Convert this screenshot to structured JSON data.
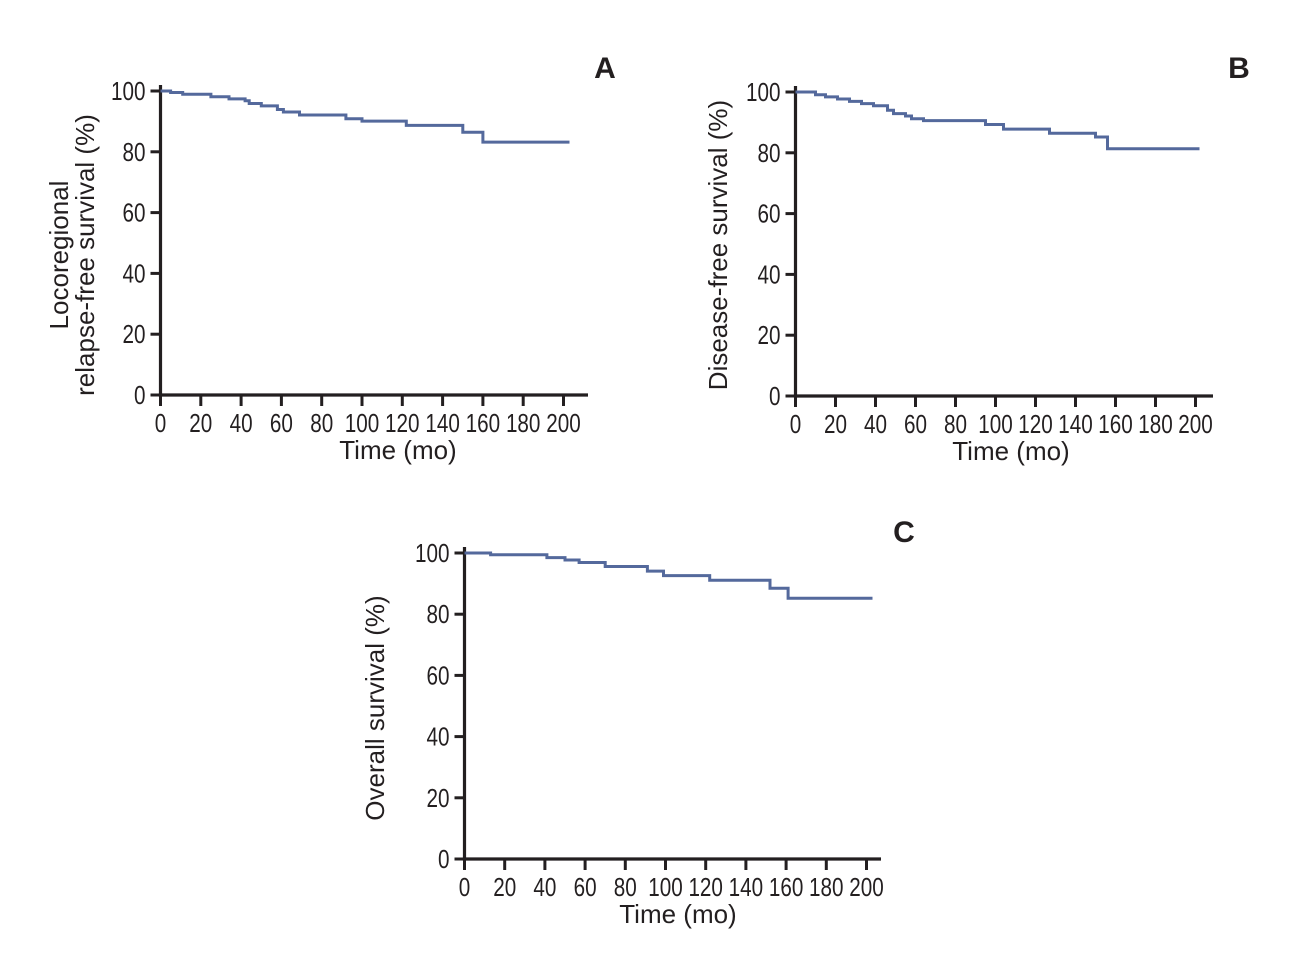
{
  "figure": {
    "background": "#ffffff",
    "description_visible_text_only": true
  },
  "chart_data": [
    {
      "type": "line",
      "subtype": "kaplan-meier-step",
      "panel": "A",
      "panel_label": "A",
      "xlabel": "Time (mo)",
      "ylabel": "Locoregional relapse-free survival (%)",
      "ylabel_lines": [
        "Locoregional",
        "relapse-free survival (%)"
      ],
      "xlim": [
        0,
        210
      ],
      "ylim": [
        0,
        100
      ],
      "x_ticks": [
        0,
        20,
        40,
        60,
        80,
        100,
        120,
        140,
        160,
        180,
        200
      ],
      "y_ticks": [
        0,
        20,
        40,
        60,
        80,
        100
      ],
      "grid": false,
      "legend": "none",
      "line_color": "#54699c",
      "axis_color": "#231f20",
      "series": [
        {
          "steps": [
            [
              0,
              100
            ],
            [
              5,
              99.5
            ],
            [
              11,
              98.9
            ],
            [
              25,
              98.1
            ],
            [
              34,
              97.4
            ],
            [
              42,
              96.8
            ],
            [
              44,
              95.9
            ],
            [
              50,
              95.1
            ],
            [
              58,
              93.9
            ],
            [
              61,
              93.1
            ],
            [
              69,
              92.1
            ],
            [
              92,
              90.9
            ],
            [
              100,
              90.1
            ],
            [
              122,
              88.7
            ],
            [
              150,
              86.4
            ],
            [
              160,
              83.2
            ]
          ],
          "end_time": 203,
          "final_value": 83.2
        }
      ]
    },
    {
      "type": "line",
      "subtype": "kaplan-meier-step",
      "panel": "B",
      "panel_label": "B",
      "xlabel": "Time (mo)",
      "ylabel": "Disease-free survival (%)",
      "ylabel_lines": [
        "Disease-free survival (%)"
      ],
      "xlim": [
        0,
        210
      ],
      "ylim": [
        0,
        100
      ],
      "x_ticks": [
        0,
        20,
        40,
        60,
        80,
        100,
        120,
        140,
        160,
        180,
        200
      ],
      "y_ticks": [
        0,
        20,
        40,
        60,
        80,
        100
      ],
      "grid": false,
      "legend": "none",
      "line_color": "#54699c",
      "axis_color": "#231f20",
      "series": [
        {
          "steps": [
            [
              0,
              100
            ],
            [
              10,
              99.1
            ],
            [
              15,
              98.4
            ],
            [
              21,
              97.7
            ],
            [
              27,
              96.9
            ],
            [
              33,
              96.2
            ],
            [
              39,
              95.5
            ],
            [
              46,
              94.0
            ],
            [
              49,
              92.9
            ],
            [
              55,
              92.1
            ],
            [
              58,
              91.2
            ],
            [
              64,
              90.6
            ],
            [
              95,
              89.3
            ],
            [
              104,
              87.8
            ],
            [
              127,
              86.4
            ],
            [
              150,
              85.2
            ],
            [
              156,
              81.3
            ]
          ],
          "end_time": 202,
          "final_value": 81.3
        }
      ]
    },
    {
      "type": "line",
      "subtype": "kaplan-meier-step",
      "panel": "C",
      "panel_label": "C",
      "xlabel": "Time (mo)",
      "ylabel": "Overall survival (%)",
      "ylabel_lines": [
        "Overall survival (%)"
      ],
      "xlim": [
        0,
        210
      ],
      "ylim": [
        0,
        100
      ],
      "x_ticks": [
        0,
        20,
        40,
        60,
        80,
        100,
        120,
        140,
        160,
        180,
        200
      ],
      "y_ticks": [
        0,
        20,
        40,
        60,
        80,
        100
      ],
      "grid": false,
      "legend": "none",
      "line_color": "#54699c",
      "axis_color": "#231f20",
      "series": [
        {
          "steps": [
            [
              0,
              100
            ],
            [
              13,
              99.4
            ],
            [
              41,
              98.5
            ],
            [
              50,
              97.7
            ],
            [
              57,
              96.9
            ],
            [
              70,
              95.6
            ],
            [
              91,
              94.1
            ],
            [
              99,
              92.6
            ],
            [
              122,
              91.1
            ],
            [
              152,
              88.5
            ],
            [
              161,
              85.2
            ]
          ],
          "end_time": 203,
          "final_value": 85.2
        }
      ]
    }
  ]
}
